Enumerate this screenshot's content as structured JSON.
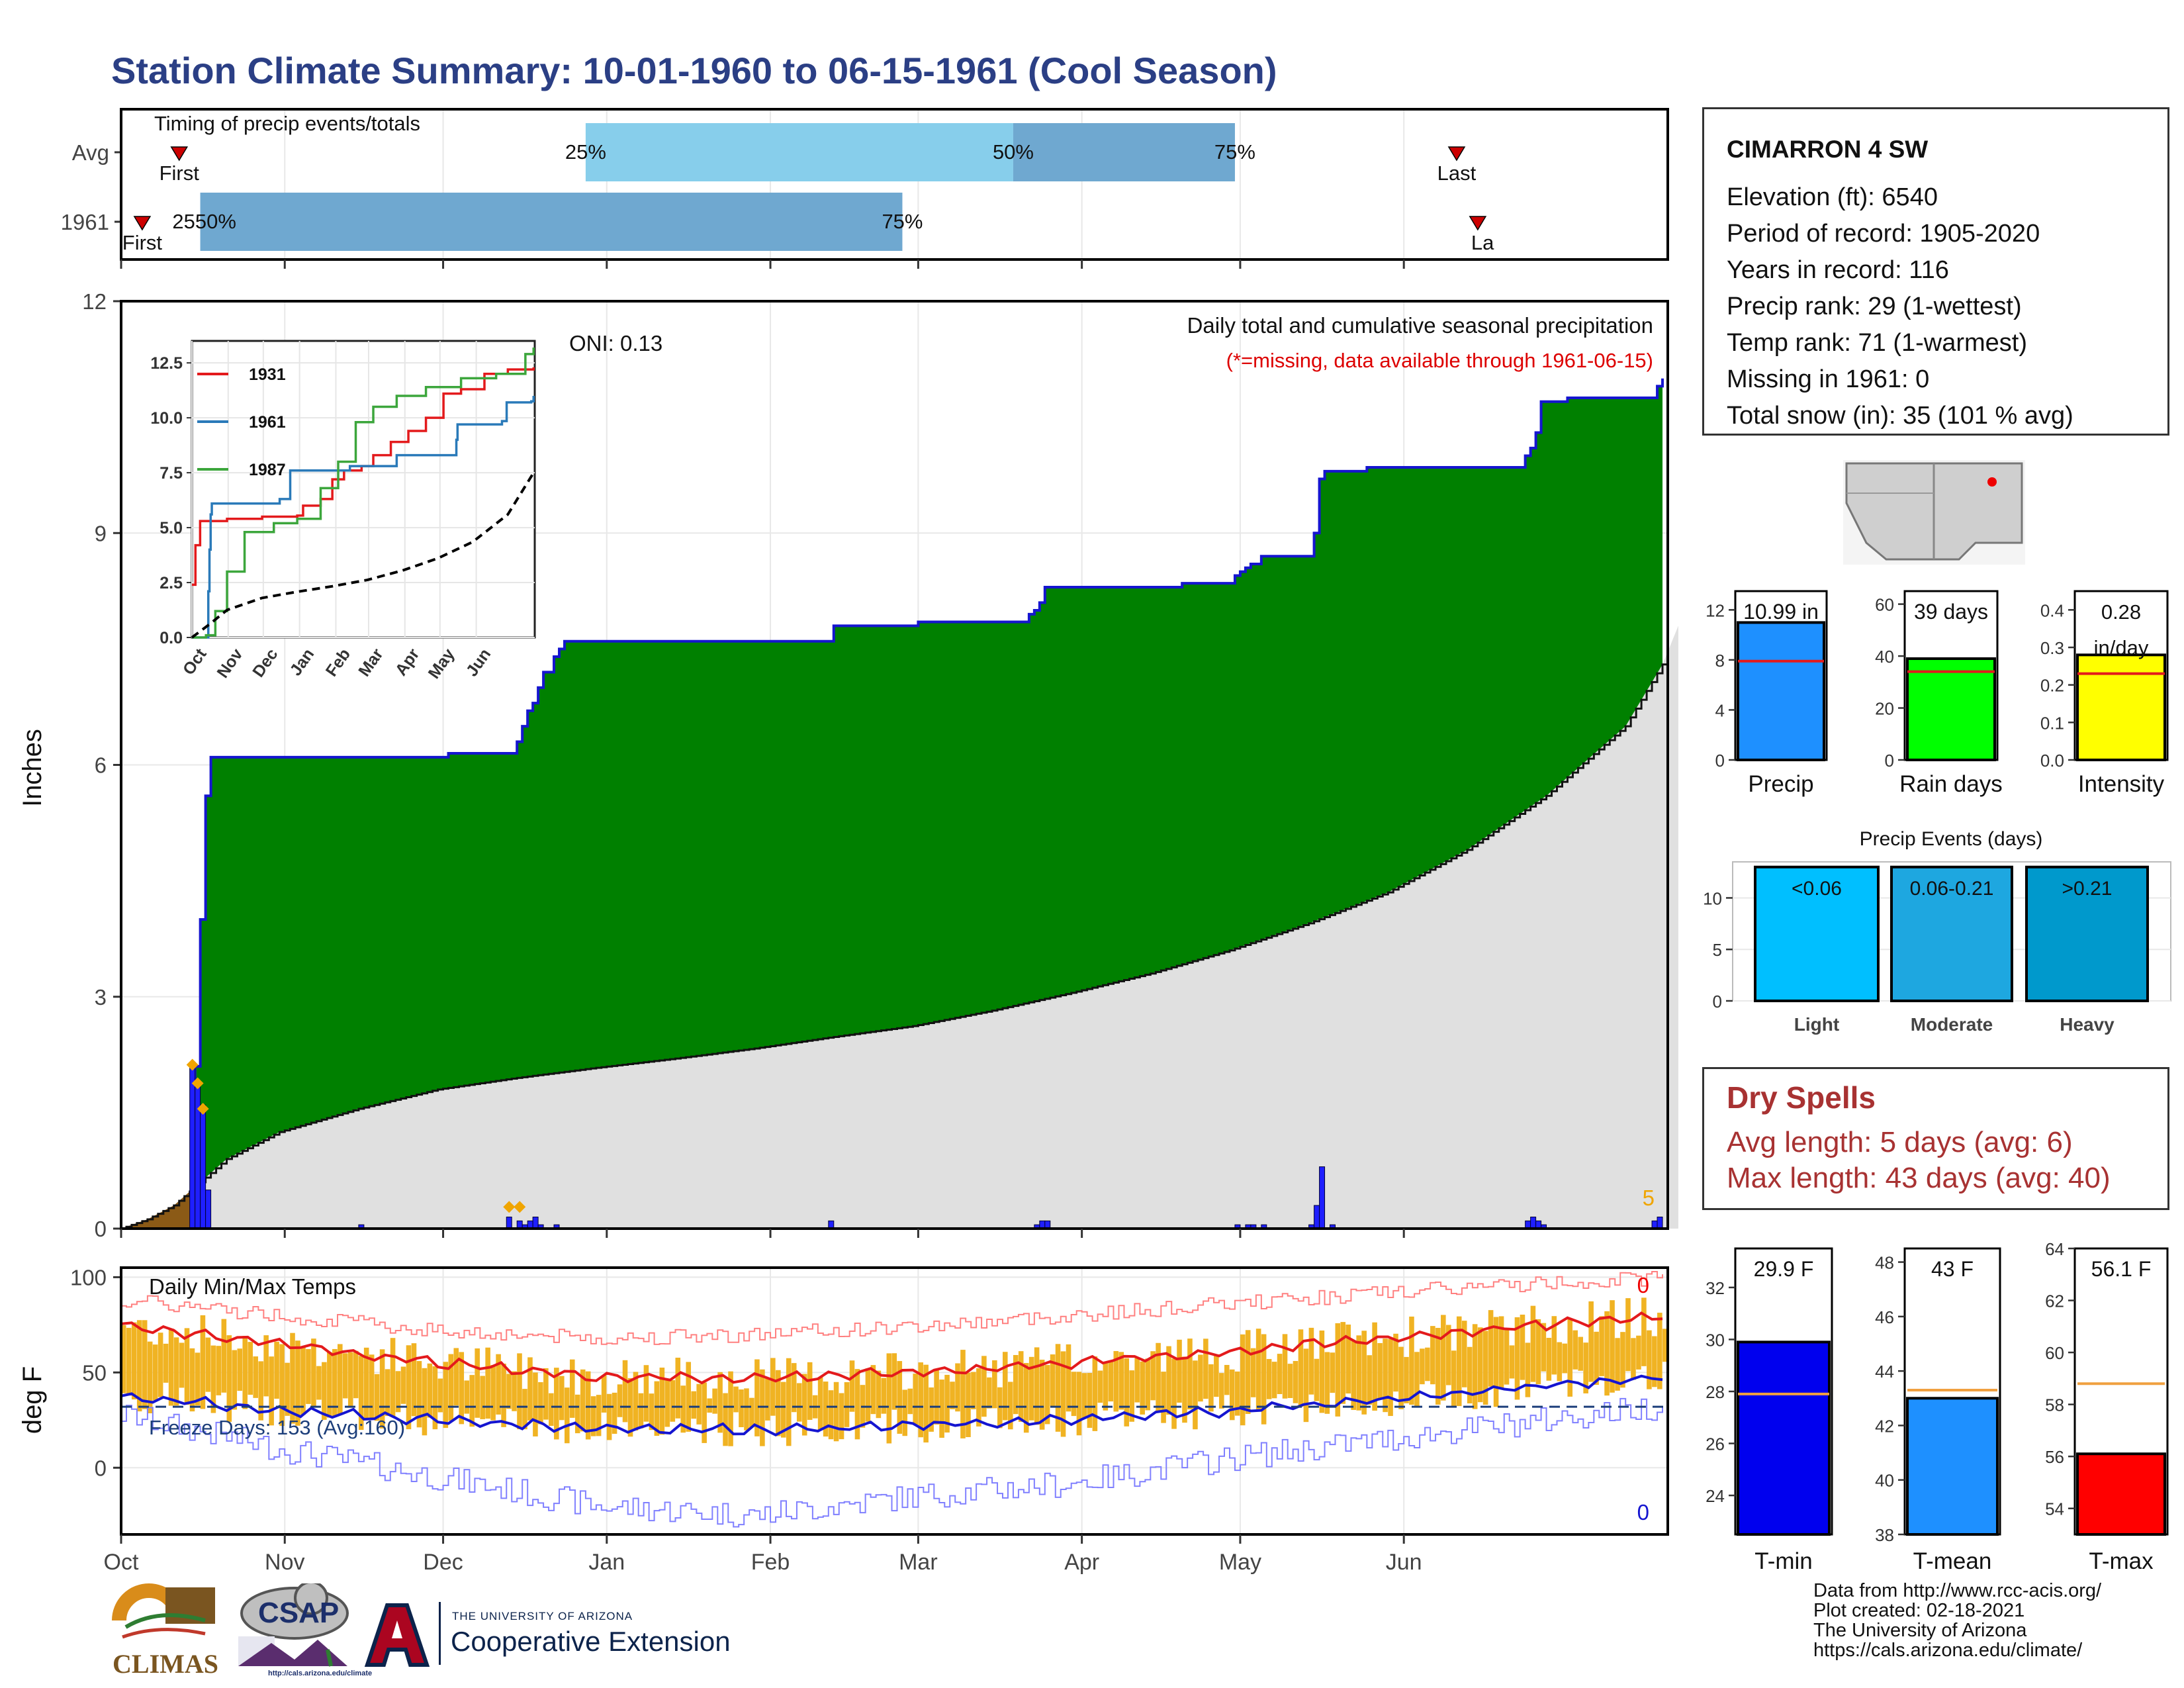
{
  "title": "Station Climate Summary: 10-01-1960 to 06-15-1961 (Cool Season)",
  "station": {
    "name": "CIMARRON 4 SW",
    "lines": [
      "Elevation (ft): 6540",
      "Period of record: 1905-2020",
      "Years in record: 116",
      "Precip rank: 29 (1-wettest)",
      "Temp rank: 71 (1-warmest)",
      "Missing in 1961: 0",
      "Total snow (in): 35 (101 % avg)"
    ]
  },
  "dry_spells": {
    "heading": "Dry Spells",
    "avg_length": "Avg length: 5 days (avg: 6)",
    "max_length": "Max length: 43 days (avg: 40)"
  },
  "credits": [
    "Data from http://www.rcc-acis.org/",
    "Plot created: 02-18-2021",
    "The University of Arizona",
    "https://cals.arizona.edu/climate/"
  ],
  "logos": {
    "climas": "CLIMAS",
    "csap": "CSAP",
    "csap_url": "http://cals.arizona.edu/climate",
    "ua_small": "THE UNIVERSITY OF ARIZONA",
    "ua_big": "Cooperative Extension"
  },
  "colors": {
    "title": "#2b3f85",
    "cumulative_precip": "#008000",
    "avg_cumulative": "#e0e0e0",
    "daily_bars": "#1f1fff",
    "temp_bars": "#f0b323",
    "tmax_avg": "#e31a1c",
    "tmin_avg": "#1515d0",
    "dry_spell_text": "#a83232",
    "timing_light": "#87ceeb",
    "timing_dark": "#6fa8d0"
  },
  "chart_data": [
    {
      "id": "timing",
      "type": "bar",
      "title": "Timing of precip events/totals",
      "rows": [
        {
          "label": "Avg",
          "first": "Oct 12",
          "q25": "Dec 28",
          "q50": "Mar 19",
          "q75": "Apr 30",
          "last": "Jun 11"
        },
        {
          "label": "1961",
          "first": "Oct 5",
          "q25": "Oct 16",
          "q50": "Oct 16",
          "q75": "Feb 26",
          "last": "Jun 15"
        }
      ],
      "marker_labels": {
        "first": "First",
        "last": "Last",
        "last_truncated": "La",
        "q25": "25%",
        "q50": "50%",
        "q75": "75%",
        "overlap": "2550%"
      }
    },
    {
      "id": "precip",
      "type": "area",
      "subtitle": "Daily total and cumulative seasonal precipitation",
      "note": "(*=missing, data available through 1961-06-15)",
      "oni": "ONI: 0.13",
      "ylabel": "Inches",
      "ylim": [
        0,
        12
      ],
      "yticks": [
        0,
        3,
        6,
        9,
        12
      ],
      "xticks": [
        "Oct",
        "Nov",
        "Dec",
        "Jan",
        "Feb",
        "Mar",
        "Apr",
        "May",
        "Jun"
      ],
      "corner_count": "5",
      "cumulative_1961": [
        [
          0,
          0
        ],
        [
          12,
          0
        ],
        [
          14,
          2.1
        ],
        [
          15,
          4.0
        ],
        [
          16,
          5.6
        ],
        [
          17,
          6.1
        ],
        [
          45,
          6.1
        ],
        [
          62,
          6.15
        ],
        [
          73,
          6.15
        ],
        [
          75,
          6.3
        ],
        [
          76,
          6.5
        ],
        [
          77,
          6.7
        ],
        [
          78,
          6.8
        ],
        [
          79,
          7.0
        ],
        [
          80,
          7.2
        ],
        [
          82,
          7.4
        ],
        [
          83,
          7.5
        ],
        [
          84,
          7.6
        ],
        [
          134,
          7.6
        ],
        [
          135,
          7.8
        ],
        [
          150,
          7.8
        ],
        [
          151,
          7.85
        ],
        [
          171,
          7.85
        ],
        [
          172,
          7.95
        ],
        [
          173,
          8.0
        ],
        [
          174,
          8.1
        ],
        [
          175,
          8.3
        ],
        [
          200,
          8.3
        ],
        [
          201,
          8.35
        ],
        [
          210,
          8.35
        ],
        [
          211,
          8.45
        ],
        [
          212,
          8.5
        ],
        [
          213,
          8.55
        ],
        [
          214,
          8.6
        ],
        [
          216,
          8.7
        ],
        [
          225,
          8.7
        ],
        [
          226,
          9.0
        ],
        [
          227,
          9.7
        ],
        [
          228,
          9.8
        ],
        [
          235,
          9.8
        ],
        [
          236,
          9.85
        ],
        [
          265,
          9.85
        ],
        [
          266,
          10.0
        ],
        [
          267,
          10.1
        ],
        [
          268,
          10.3
        ],
        [
          269,
          10.7
        ],
        [
          273,
          10.7
        ],
        [
          274,
          10.75
        ],
        [
          290,
          10.75
        ],
        [
          291,
          10.9
        ],
        [
          292,
          11.0
        ]
      ],
      "average_cumulative": [
        [
          0,
          0
        ],
        [
          5,
          0.12
        ],
        [
          10,
          0.3
        ],
        [
          15,
          0.6
        ],
        [
          20,
          0.9
        ],
        [
          30,
          1.25
        ],
        [
          45,
          1.55
        ],
        [
          60,
          1.8
        ],
        [
          75,
          1.95
        ],
        [
          90,
          2.08
        ],
        [
          105,
          2.2
        ],
        [
          120,
          2.33
        ],
        [
          135,
          2.48
        ],
        [
          150,
          2.62
        ],
        [
          165,
          2.82
        ],
        [
          180,
          3.05
        ],
        [
          195,
          3.3
        ],
        [
          210,
          3.6
        ],
        [
          225,
          3.95
        ],
        [
          240,
          4.35
        ],
        [
          255,
          4.9
        ],
        [
          270,
          5.6
        ],
        [
          285,
          6.5
        ],
        [
          292,
          7.3
        ],
        [
          295,
          7.8
        ]
      ],
      "daily_totals": [
        [
          13,
          2.1
        ],
        [
          14,
          1.9
        ],
        [
          15,
          1.6
        ],
        [
          16,
          0.5
        ],
        [
          45,
          0.05
        ],
        [
          73,
          0.15
        ],
        [
          75,
          0.1
        ],
        [
          76,
          0.05
        ],
        [
          77,
          0.1
        ],
        [
          78,
          0.15
        ],
        [
          79,
          0.05
        ],
        [
          82,
          0.05
        ],
        [
          134,
          0.1
        ],
        [
          173,
          0.05
        ],
        [
          174,
          0.1
        ],
        [
          175,
          0.1
        ],
        [
          211,
          0.05
        ],
        [
          213,
          0.05
        ],
        [
          214,
          0.05
        ],
        [
          216,
          0.05
        ],
        [
          225,
          0.05
        ],
        [
          226,
          0.3
        ],
        [
          227,
          0.8
        ],
        [
          229,
          0.05
        ],
        [
          266,
          0.1
        ],
        [
          267,
          0.15
        ],
        [
          268,
          0.1
        ],
        [
          269,
          0.05
        ],
        [
          290,
          0.1
        ],
        [
          291,
          0.15
        ]
      ],
      "missing_markers_x": [
        13,
        14,
        15,
        73,
        75
      ],
      "inset": {
        "type": "line",
        "ylim": [
          0,
          13.5
        ],
        "yticks": [
          "0.0",
          "2.5",
          "5.0",
          "7.5",
          "10.0",
          "12.5"
        ],
        "xticks": [
          "Oct",
          "Nov",
          "Dec",
          "Jan",
          "Feb",
          "Mar",
          "Apr",
          "May",
          "Jun"
        ],
        "series": [
          {
            "name": "1931",
            "values": [
              [
                0,
                2.4
              ],
              [
                3,
                4.2
              ],
              [
                7,
                5.3
              ],
              [
                30,
                5.4
              ],
              [
                60,
                5.5
              ],
              [
                90,
                5.55
              ],
              [
                95,
                6.0
              ],
              [
                110,
                6.3
              ],
              [
                120,
                7.2
              ],
              [
                130,
                7.6
              ],
              [
                145,
                7.8
              ],
              [
                155,
                8.3
              ],
              [
                170,
                8.9
              ],
              [
                185,
                9.4
              ],
              [
                200,
                10.0
              ],
              [
                215,
                11.1
              ],
              [
                230,
                11.3
              ],
              [
                250,
                12.0
              ],
              [
                270,
                12.2
              ],
              [
                292,
                12.3
              ]
            ]
          },
          {
            "name": "1961",
            "values": [
              [
                0,
                0
              ],
              [
                12,
                0
              ],
              [
                14,
                2.1
              ],
              [
                15,
                4.0
              ],
              [
                16,
                5.6
              ],
              [
                17,
                6.1
              ],
              [
                75,
                6.3
              ],
              [
                84,
                7.6
              ],
              [
                134,
                7.6
              ],
              [
                135,
                7.8
              ],
              [
                175,
                8.3
              ],
              [
                226,
                9.0
              ],
              [
                227,
                9.7
              ],
              [
                265,
                9.85
              ],
              [
                269,
                10.7
              ],
              [
                290,
                10.75
              ],
              [
                292,
                11.0
              ]
            ]
          },
          {
            "name": "1987",
            "values": [
              [
                0,
                0
              ],
              [
                12,
                0.1
              ],
              [
                20,
                1.2
              ],
              [
                30,
                3.0
              ],
              [
                45,
                4.8
              ],
              [
                70,
                5.2
              ],
              [
                90,
                5.4
              ],
              [
                110,
                6.8
              ],
              [
                125,
                8.0
              ],
              [
                140,
                9.8
              ],
              [
                155,
                10.5
              ],
              [
                175,
                11.0
              ],
              [
                200,
                11.4
              ],
              [
                230,
                11.8
              ],
              [
                260,
                12.0
              ],
              [
                285,
                12.9
              ],
              [
                292,
                13.2
              ]
            ]
          },
          {
            "name": "Average",
            "values": [
              [
                0,
                0
              ],
              [
                15,
                0.6
              ],
              [
                30,
                1.25
              ],
              [
                60,
                1.8
              ],
              [
                90,
                2.08
              ],
              [
                120,
                2.33
              ],
              [
                150,
                2.62
              ],
              [
                180,
                3.05
              ],
              [
                210,
                3.6
              ],
              [
                240,
                4.35
              ],
              [
                270,
                5.6
              ],
              [
                292,
                7.5
              ]
            ]
          }
        ]
      }
    },
    {
      "id": "temps",
      "type": "bar",
      "title": "Daily Min/Max Temps",
      "freeze": "Freeze Days: 153 (Avg:160)",
      "ylabel": "deg F",
      "ylim": [
        -35,
        105
      ],
      "yticks": [
        0,
        50,
        100
      ],
      "xticks": [
        "Oct",
        "Nov",
        "Dec",
        "Jan",
        "Feb",
        "Mar",
        "Apr",
        "May",
        "Jun"
      ],
      "record_max_count": "0",
      "record_min_count": "0",
      "freeze_line": 32,
      "avg_tmax": [
        [
          0,
          75
        ],
        [
          30,
          65
        ],
        [
          60,
          55
        ],
        [
          90,
          48
        ],
        [
          120,
          47
        ],
        [
          150,
          50
        ],
        [
          180,
          55
        ],
        [
          210,
          61
        ],
        [
          240,
          68
        ],
        [
          270,
          75
        ],
        [
          293,
          80
        ]
      ],
      "avg_tmin": [
        [
          0,
          38
        ],
        [
          30,
          30
        ],
        [
          60,
          25
        ],
        [
          90,
          21
        ],
        [
          120,
          20
        ],
        [
          150,
          22
        ],
        [
          180,
          25
        ],
        [
          210,
          30
        ],
        [
          240,
          36
        ],
        [
          270,
          43
        ],
        [
          293,
          48
        ]
      ],
      "rec_max": [
        [
          0,
          88
        ],
        [
          30,
          80
        ],
        [
          60,
          72
        ],
        [
          90,
          68
        ],
        [
          120,
          70
        ],
        [
          150,
          74
        ],
        [
          180,
          80
        ],
        [
          210,
          86
        ],
        [
          240,
          92
        ],
        [
          270,
          97
        ],
        [
          293,
          100
        ]
      ],
      "rec_min": [
        [
          0,
          28
        ],
        [
          30,
          10
        ],
        [
          60,
          -5
        ],
        [
          90,
          -20
        ],
        [
          120,
          -25
        ],
        [
          150,
          -15
        ],
        [
          180,
          -8
        ],
        [
          210,
          5
        ],
        [
          240,
          15
        ],
        [
          270,
          25
        ],
        [
          293,
          33
        ]
      ]
    },
    {
      "id": "precip_summary",
      "type": "bar",
      "categories": [
        "Precip",
        "Rain days",
        "Intensity"
      ],
      "values": [
        10.99,
        39,
        0.28
      ],
      "averages": [
        7.9,
        34,
        0.23
      ],
      "value_labels": [
        "10.99 in",
        "39 days",
        "0.28 in/day"
      ],
      "ylims": [
        [
          0,
          13.5
        ],
        [
          0,
          65
        ],
        [
          0,
          0.45
        ]
      ],
      "yticks": [
        [
          "0",
          "4",
          "8",
          "12"
        ],
        [
          "0",
          "20",
          "40",
          "60"
        ],
        [
          "0.0",
          "0.1",
          "0.2",
          "0.3",
          "0.4"
        ]
      ],
      "colors": [
        "#1e90ff",
        "#00ff00",
        "#ffff00"
      ]
    },
    {
      "id": "precip_events",
      "type": "bar",
      "title": "Precip Events (days)",
      "categories": [
        "Light",
        "Moderate",
        "Heavy"
      ],
      "bin_labels": [
        "<0.06",
        "0.06-0.21",
        ">0.21"
      ],
      "values": [
        13,
        13,
        13
      ],
      "ylim": [
        0,
        13.5
      ],
      "yticks": [
        "0",
        "5",
        "10"
      ],
      "colors": [
        "#00bfff",
        "#1ea7e0",
        "#0099cc"
      ]
    },
    {
      "id": "temp_summary",
      "type": "bar",
      "categories": [
        "T-min",
        "T-mean",
        "T-max"
      ],
      "values": [
        29.9,
        43.0,
        56.1
      ],
      "averages": [
        27.9,
        43.3,
        58.8
      ],
      "value_labels": [
        "29.9 F",
        "43 F",
        "56.1 F"
      ],
      "ylims": [
        [
          22.5,
          33.5
        ],
        [
          38,
          48.5
        ],
        [
          53,
          64
        ]
      ],
      "yticks": [
        [
          "24",
          "26",
          "28",
          "30",
          "32"
        ],
        [
          "38",
          "40",
          "42",
          "44",
          "46",
          "48"
        ],
        [
          "54",
          "56",
          "58",
          "60",
          "62",
          "64"
        ]
      ],
      "colors": [
        "#0000ee",
        "#1e90ff",
        "#ff0000"
      ]
    }
  ]
}
